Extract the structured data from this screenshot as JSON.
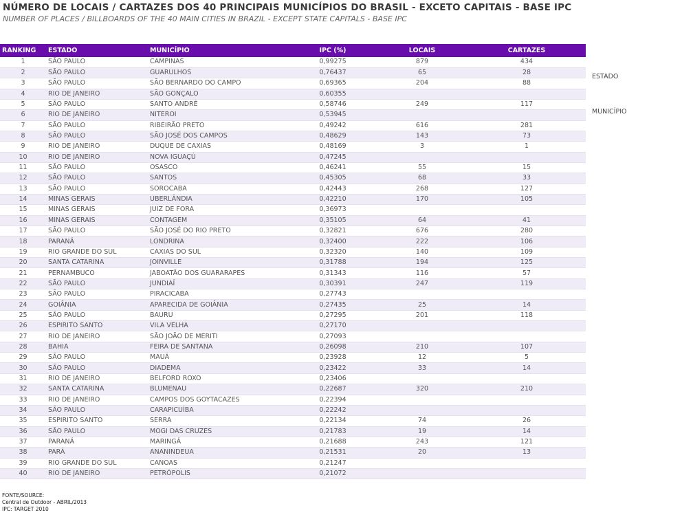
{
  "title": "NÚMERO DE LOCAIS / CARTAZES DOS 40 PRINCIPAIS MUNICÍPIOS DO BRASIL - EXCETO CAPITAIS - BASE IPC",
  "subtitle": "NUMBER OF PLACES / BILLBOARDS OF THE 40 MAIN CITIES IN BRAZIL - EXCEPT STATE CAPITALS - BASE IPC",
  "headers": {
    "ranking": "RANKING",
    "estado": "ESTADO",
    "municipio": "MUNICÍPIO",
    "ipc": "IPC (%)",
    "locais": "LOCAIS",
    "cartazes": "CARTAZES"
  },
  "side_labels": {
    "estado": "ESTADO",
    "municipio": "MUNICÍPIO"
  },
  "rows": [
    [
      "1",
      "SÃO PAULO",
      "CAMPINAS",
      "0,99275",
      "879",
      "434"
    ],
    [
      "2",
      "SÃO PAULO",
      "GUARULHOS",
      "0,76437",
      "65",
      "28"
    ],
    [
      "3",
      "SÃO PAULO",
      "SÃO BERNARDO DO CAMPO",
      "0,69365",
      "204",
      "88"
    ],
    [
      "4",
      "RIO DE JANEIRO",
      "SÃO GONÇALO",
      "0,60355",
      "",
      ""
    ],
    [
      "5",
      "SÃO PAULO",
      "SANTO ANDRÉ",
      "0,58746",
      "249",
      "117"
    ],
    [
      "6",
      "RIO DE JANEIRO",
      "NITEROI",
      "0,53945",
      "",
      ""
    ],
    [
      "7",
      "SÃO PAULO",
      "RIBEIRÃO PRETO",
      "0,49242",
      "616",
      "281"
    ],
    [
      "8",
      "SÃO PAULO",
      "SÃO JOSÉ DOS CAMPOS",
      "0,48629",
      "143",
      "73"
    ],
    [
      "9",
      "RIO DE JANEIRO",
      "DUQUE DE CAXIAS",
      "0,48169",
      "3",
      "1"
    ],
    [
      "10",
      "RIO DE JANEIRO",
      "NOVA IGUAÇÚ",
      "0,47245",
      "",
      ""
    ],
    [
      "11",
      "SÃO PAULO",
      "OSASCO",
      "0,46241",
      "55",
      "15"
    ],
    [
      "12",
      "SÃO PAULO",
      "SANTOS",
      "0,45305",
      "68",
      "33"
    ],
    [
      "13",
      "SÃO PAULO",
      "SOROCABA",
      "0,42443",
      "268",
      "127"
    ],
    [
      "14",
      "MINAS GERAIS",
      "UBERLÂNDIA",
      "0,42210",
      "170",
      "105"
    ],
    [
      "15",
      "MINAS GERAIS",
      "JUIZ DE FORA",
      "0,36973",
      "",
      ""
    ],
    [
      "16",
      "MINAS GERAIS",
      "CONTAGEM",
      "0,35105",
      "64",
      "41"
    ],
    [
      "17",
      "SÃO PAULO",
      "SÃO JOSÉ DO RIO PRETO",
      "0,32821",
      "676",
      "280"
    ],
    [
      "18",
      "PARANÁ",
      "LONDRINA",
      "0,32400",
      "222",
      "106"
    ],
    [
      "19",
      "RIO GRANDE DO SUL",
      "CAXIAS DO SUL",
      "0,32320",
      "140",
      "109"
    ],
    [
      "20",
      "SANTA CATARINA",
      "JOINVILLE",
      "0,31788",
      "194",
      "125"
    ],
    [
      "21",
      "PERNAMBUCO",
      "JABOATÃO DOS GUARARAPES",
      "0,31343",
      "116",
      "57"
    ],
    [
      "22",
      "SÃO PAULO",
      "JUNDIAÍ",
      "0,30391",
      "247",
      "119"
    ],
    [
      "23",
      "SÃO PAULO",
      "PIRACICABA",
      "0,27743",
      "",
      ""
    ],
    [
      "24",
      "GOIÂNIA",
      "APARECIDA DE GOIÂNIA",
      "0,27435",
      "25",
      "14"
    ],
    [
      "25",
      "SÃO PAULO",
      "BAURU",
      "0,27295",
      "201",
      "118"
    ],
    [
      "26",
      "ESPIRITO SANTO",
      "VILA VELHA",
      "0,27170",
      "",
      ""
    ],
    [
      "27",
      "RIO DE JANEIRO",
      "SÃO JOÃO DE MERITI",
      "0,27093",
      "",
      ""
    ],
    [
      "28",
      "BAHIA",
      "FEIRA DE SANTANA",
      "0,26098",
      "210",
      "107"
    ],
    [
      "29",
      "SÃO PAULO",
      "MAUÁ",
      "0,23928",
      "12",
      "5"
    ],
    [
      "30",
      "SÃO PAULO",
      "DIADEMA",
      "0,23422",
      "33",
      "14"
    ],
    [
      "31",
      "RIO DE JANEIRO",
      "BELFORD ROXO",
      "0,23406",
      "",
      ""
    ],
    [
      "32",
      "SANTA CATARINA",
      "BLUMENAU",
      "0,22687",
      "320",
      "210"
    ],
    [
      "33",
      "RIO DE JANEIRO",
      "CAMPOS DOS GOYTACAZES",
      "0,22394",
      "",
      ""
    ],
    [
      "34",
      "SÃO PAULO",
      "CARAPICUÍBA",
      "0,22242",
      "",
      ""
    ],
    [
      "35",
      "ESPIRITO SANTO",
      "SERRA",
      "0,22134",
      "74",
      "26"
    ],
    [
      "36",
      "SÃO PAULO",
      "MOGI DAS CRUZES",
      "0,21783",
      "19",
      "14"
    ],
    [
      "37",
      "PARANÁ",
      "MARINGÁ",
      "0,21688",
      "243",
      "121"
    ],
    [
      "38",
      "PARÁ",
      "ANANINDEUA",
      "0,21531",
      "20",
      "13"
    ],
    [
      "39",
      "RIO GRANDE DO SUL",
      "CANOAS",
      "0,21247",
      "",
      ""
    ],
    [
      "40",
      "RIO DE JANEIRO",
      "PETRÓPOLIS",
      "0,21072",
      "",
      ""
    ]
  ],
  "source": {
    "line1": "FONTE/SOURCE:",
    "line2": "Central de Outdoor - ABRIL/2013",
    "line3": "IPC: TARGET 2010"
  }
}
